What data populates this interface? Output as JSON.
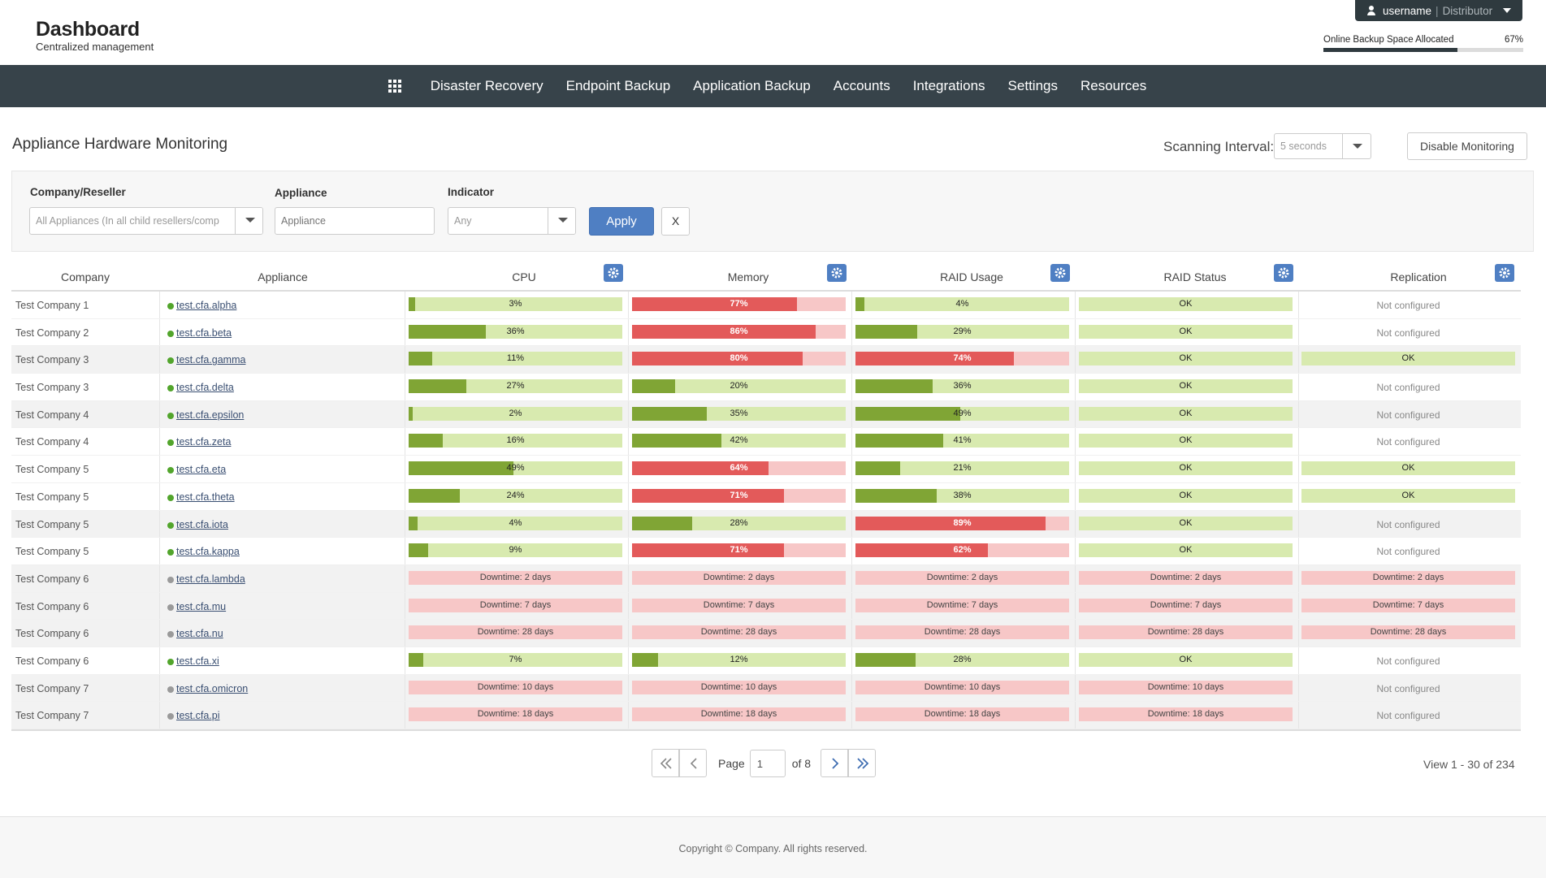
{
  "header": {
    "title": "Dashboard",
    "subtitle": "Centralized management",
    "user": {
      "name": "username",
      "separator": "|",
      "role": "Distributor"
    },
    "backup_space": {
      "label": "Online Backup Space Allocated",
      "percent_text": "67%",
      "fraction": 0.67
    }
  },
  "nav": {
    "items": [
      "Disaster Recovery",
      "Endpoint Backup",
      "Application Backup",
      "Accounts",
      "Integrations",
      "Settings",
      "Resources"
    ]
  },
  "page": {
    "title": "Appliance Hardware Monitoring",
    "scan_label": "Scanning Interval:",
    "scan_value": "5 seconds",
    "disable_label": "Disable Monitoring"
  },
  "filters": {
    "company_label": "Company/Reseller",
    "company_value": "All Appliances (In all child resellers/comp",
    "appliance_label": "Appliance",
    "appliance_placeholder": "Appliance",
    "indicator_label": "Indicator",
    "indicator_value": "Any",
    "apply_label": "Apply",
    "clear_label": "X"
  },
  "table": {
    "columns": [
      "Company",
      "Appliance",
      "CPU",
      "Memory",
      "RAID Usage",
      "RAID Status",
      "Replication"
    ],
    "rows": [
      {
        "company": "Test Company 1",
        "appliance": "test.cfa.alpha",
        "online": true,
        "cpu": 3,
        "mem": 77,
        "raid": 4,
        "raid_status": "OK",
        "replication": "Not configured"
      },
      {
        "company": "Test Company 2",
        "appliance": "test.cfa.beta",
        "online": true,
        "cpu": 36,
        "mem": 86,
        "raid": 29,
        "raid_status": "OK",
        "replication": "Not configured"
      },
      {
        "company": "Test Company 3",
        "appliance": "test.cfa.gamma",
        "online": true,
        "cpu": 11,
        "mem": 80,
        "raid": 74,
        "raid_status": "OK",
        "replication": "OK"
      },
      {
        "company": "Test Company 3",
        "appliance": "test.cfa.delta",
        "online": true,
        "cpu": 27,
        "mem": 20,
        "raid": 36,
        "raid_status": "OK",
        "replication": "Not configured"
      },
      {
        "company": "Test Company 4",
        "appliance": "test.cfa.epsilon",
        "online": true,
        "cpu": 2,
        "mem": 35,
        "raid": 49,
        "raid_status": "OK",
        "replication": "Not configured"
      },
      {
        "company": "Test Company 4",
        "appliance": "test.cfa.zeta",
        "online": true,
        "cpu": 16,
        "mem": 42,
        "raid": 41,
        "raid_status": "OK",
        "replication": "Not configured"
      },
      {
        "company": "Test Company 5",
        "appliance": "test.cfa.eta",
        "online": true,
        "cpu": 49,
        "mem": 64,
        "raid": 21,
        "raid_status": "OK",
        "replication": "OK"
      },
      {
        "company": "Test Company 5",
        "appliance": "test.cfa.theta",
        "online": true,
        "cpu": 24,
        "mem": 71,
        "raid": 38,
        "raid_status": "OK",
        "replication": "OK"
      },
      {
        "company": "Test Company 5",
        "appliance": "test.cfa.iota",
        "online": true,
        "cpu": 4,
        "mem": 28,
        "raid": 89,
        "raid_status": "OK",
        "replication": "Not configured"
      },
      {
        "company": "Test Company 5",
        "appliance": "test.cfa.kappa",
        "online": true,
        "cpu": 9,
        "mem": 71,
        "raid": 62,
        "raid_status": "OK",
        "replication": "Not configured"
      },
      {
        "company": "Test Company 6",
        "appliance": "test.cfa.lambda",
        "online": false,
        "downtime": "Downtime: 2 days",
        "replication": "Downtime: 2 days"
      },
      {
        "company": "Test Company 6",
        "appliance": "test.cfa.mu",
        "online": false,
        "downtime": "Downtime: 7 days",
        "replication": "Downtime: 7 days"
      },
      {
        "company": "Test Company 6",
        "appliance": "test.cfa.nu",
        "online": false,
        "downtime": "Downtime: 28 days",
        "replication": "Downtime: 28 days"
      },
      {
        "company": "Test Company 6",
        "appliance": "test.cfa.xi",
        "online": true,
        "cpu": 7,
        "mem": 12,
        "raid": 28,
        "raid_status": "OK",
        "replication": "Not configured"
      },
      {
        "company": "Test Company 7",
        "appliance": "test.cfa.omicron",
        "online": false,
        "downtime": "Downtime: 10 days",
        "replication": "Not configured"
      },
      {
        "company": "Test Company 7",
        "appliance": "test.cfa.pi",
        "online": false,
        "downtime": "Downtime: 18 days",
        "replication": "Not configured"
      }
    ],
    "alert_threshold": 60
  },
  "pagination": {
    "page_label": "Page",
    "current": "1",
    "of_label": "of 8",
    "view_count": "View 1 - 30 of 234"
  },
  "footer": {
    "copyright": "Copyright ©  Company.  All rights reserved."
  },
  "colors": {
    "nav_bg": "#37434a",
    "ok_green": "#80a535",
    "ok_green_bg": "#d8eaaf",
    "alert_red": "#e35a5a",
    "alert_red_bg": "#f7c7c7",
    "accent_blue": "#4f7fc3"
  }
}
